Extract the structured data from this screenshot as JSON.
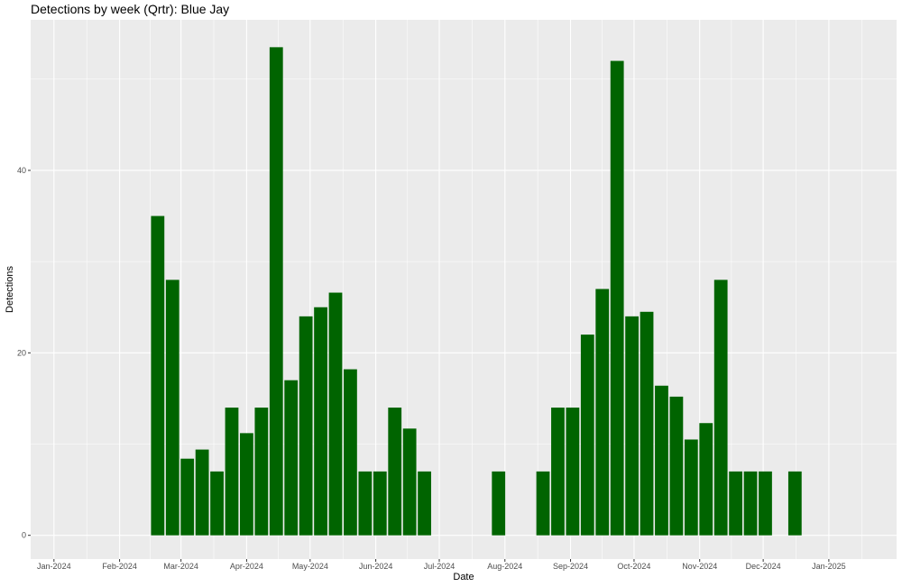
{
  "chart_data": {
    "type": "bar",
    "title": "Detections by week (Qrtr): Blue Jay",
    "xlabel": "Date",
    "ylabel": "Detections",
    "x_tick_labels": [
      "Jan-2024",
      "Feb-2024",
      "Mar-2024",
      "Apr-2024",
      "May-2024",
      "Jun-2024",
      "Jul-2024",
      "Aug-2024",
      "Sep-2024",
      "Oct-2024",
      "Nov-2024",
      "Dec-2024",
      "Jan-2025"
    ],
    "y_ticks": [
      0,
      20,
      40
    ],
    "ylim": [
      -2.6,
      56.5
    ],
    "xlim": [
      "2023-12-21",
      "2025-02-02"
    ],
    "grid": true,
    "bar_color": "#006400",
    "panel_background": "#ebebeb",
    "weeks": [
      "2024-02-19",
      "2024-02-26",
      "2024-03-04",
      "2024-03-11",
      "2024-03-18",
      "2024-03-25",
      "2024-04-01",
      "2024-04-08",
      "2024-04-15",
      "2024-04-22",
      "2024-04-29",
      "2024-05-06",
      "2024-05-13",
      "2024-05-20",
      "2024-05-27",
      "2024-06-03",
      "2024-06-10",
      "2024-06-17",
      "2024-06-24",
      "2024-07-29",
      "2024-08-19",
      "2024-08-26",
      "2024-09-02",
      "2024-09-09",
      "2024-09-16",
      "2024-09-23",
      "2024-09-30",
      "2024-10-07",
      "2024-10-14",
      "2024-10-21",
      "2024-10-28",
      "2024-11-04",
      "2024-11-11",
      "2024-11-18",
      "2024-11-25",
      "2024-12-02",
      "2024-12-16"
    ],
    "values": [
      35,
      28,
      8.4,
      9.4,
      7,
      14,
      11.2,
      14,
      53.5,
      17,
      24,
      25,
      26.6,
      18.2,
      7,
      7,
      14,
      11.7,
      7,
      7,
      7,
      14,
      14,
      22,
      27,
      52,
      24,
      24.5,
      16.4,
      15.2,
      10.5,
      12.3,
      28,
      7,
      7,
      7,
      7
    ]
  }
}
